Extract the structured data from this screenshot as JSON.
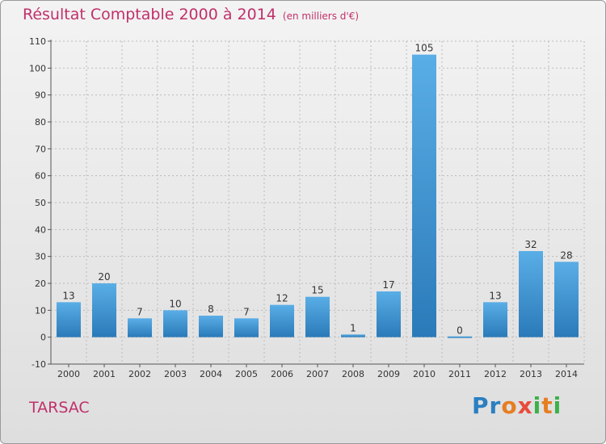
{
  "header": {
    "title": "Résultat Comptable 2000 à 2014",
    "subtitle": "(en milliers d'€)"
  },
  "footer": {
    "commune": "TARSAC",
    "logo_letters": [
      "P",
      "r",
      "o",
      "x",
      "i",
      "t",
      "i"
    ],
    "logo_colors": [
      "#2a7fc1",
      "#2a7fc1",
      "#e67e22",
      "#e74c3c",
      "#3bb14a",
      "#e67e22",
      "#3bb14a"
    ]
  },
  "colors": {
    "title": "#c0306a",
    "bar_light": "#5aaee6",
    "bar_dark": "#2a7ab9",
    "grid": "#bbbbbb"
  },
  "chart_data": {
    "type": "bar",
    "title": "Résultat Comptable 2000 à 2014",
    "subtitle": "(en milliers d'€)",
    "xlabel": "",
    "ylabel": "",
    "ylim": [
      -10,
      110
    ],
    "yticks": [
      -10,
      0,
      10,
      20,
      30,
      40,
      50,
      60,
      70,
      80,
      90,
      100,
      110
    ],
    "ytick_labels": [
      "-10",
      "0",
      "10",
      "20",
      "30",
      "40",
      "50",
      "60",
      "70",
      "80",
      "90",
      "100",
      "110"
    ],
    "categories": [
      "2000",
      "2001",
      "2002",
      "2003",
      "2004",
      "2005",
      "2006",
      "2007",
      "2008",
      "2009",
      "2010",
      "2011",
      "2012",
      "2013",
      "2014"
    ],
    "values": [
      13,
      20,
      7,
      10,
      8,
      7,
      12,
      15,
      1,
      17,
      105,
      0,
      13,
      32,
      28
    ],
    "value_labels": [
      "13",
      "20",
      "7",
      "10",
      "8",
      "7",
      "12",
      "15",
      "1",
      "17",
      "105",
      "0",
      "13",
      "32",
      "28"
    ],
    "grid": true
  }
}
